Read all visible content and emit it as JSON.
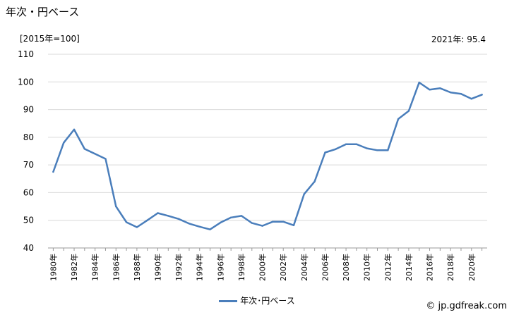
{
  "title": "年次・円ベース",
  "unit_note": "[2015年=100]",
  "latest_note": "2021年: 95.4",
  "credit": "© jp.gdfreak.com",
  "colors": {
    "series": "#4a7ebb",
    "grid": "#d9d9d9",
    "axis": "#999999"
  },
  "chart_data": {
    "type": "line",
    "title": "年次・円ベース",
    "xlabel": "",
    "ylabel": "[2015年=100]",
    "ylim": [
      40,
      110
    ],
    "yticks": [
      40,
      50,
      60,
      70,
      80,
      90,
      100,
      110
    ],
    "grid": true,
    "legend": "bottom-center",
    "x": [
      1980,
      1981,
      1982,
      1983,
      1984,
      1985,
      1986,
      1987,
      1988,
      1989,
      1990,
      1991,
      1992,
      1993,
      1994,
      1995,
      1996,
      1997,
      1998,
      1999,
      2000,
      2001,
      2002,
      2003,
      2004,
      2005,
      2006,
      2007,
      2008,
      2009,
      2010,
      2011,
      2012,
      2013,
      2014,
      2015,
      2016,
      2017,
      2018,
      2019,
      2020,
      2021
    ],
    "x_tick_labels": [
      "1980年",
      "1982年",
      "1984年",
      "1986年",
      "1988年",
      "1990年",
      "1992年",
      "1994年",
      "1996年",
      "1998年",
      "2000年",
      "2002年",
      "2004年",
      "2006年",
      "2008年",
      "2010年",
      "2012年",
      "2014年",
      "2016年",
      "2018年",
      "2020年"
    ],
    "series": [
      {
        "name": "年次･円ベース",
        "values": [
          67.5,
          78,
          82.8,
          75.8,
          74,
          72.2,
          55,
          49.3,
          47.5,
          50,
          52.6,
          51.6,
          50.5,
          48.8,
          47.7,
          46.7,
          49.2,
          51,
          51.6,
          49,
          48,
          49.5,
          49.5,
          48.2,
          59.5,
          64,
          74.5,
          75.7,
          77.5,
          77.5,
          76,
          75.3,
          75.3,
          86.6,
          89.5,
          99.8,
          97.2,
          97.7,
          96.2,
          95.7,
          93.9,
          95.4
        ]
      }
    ]
  }
}
